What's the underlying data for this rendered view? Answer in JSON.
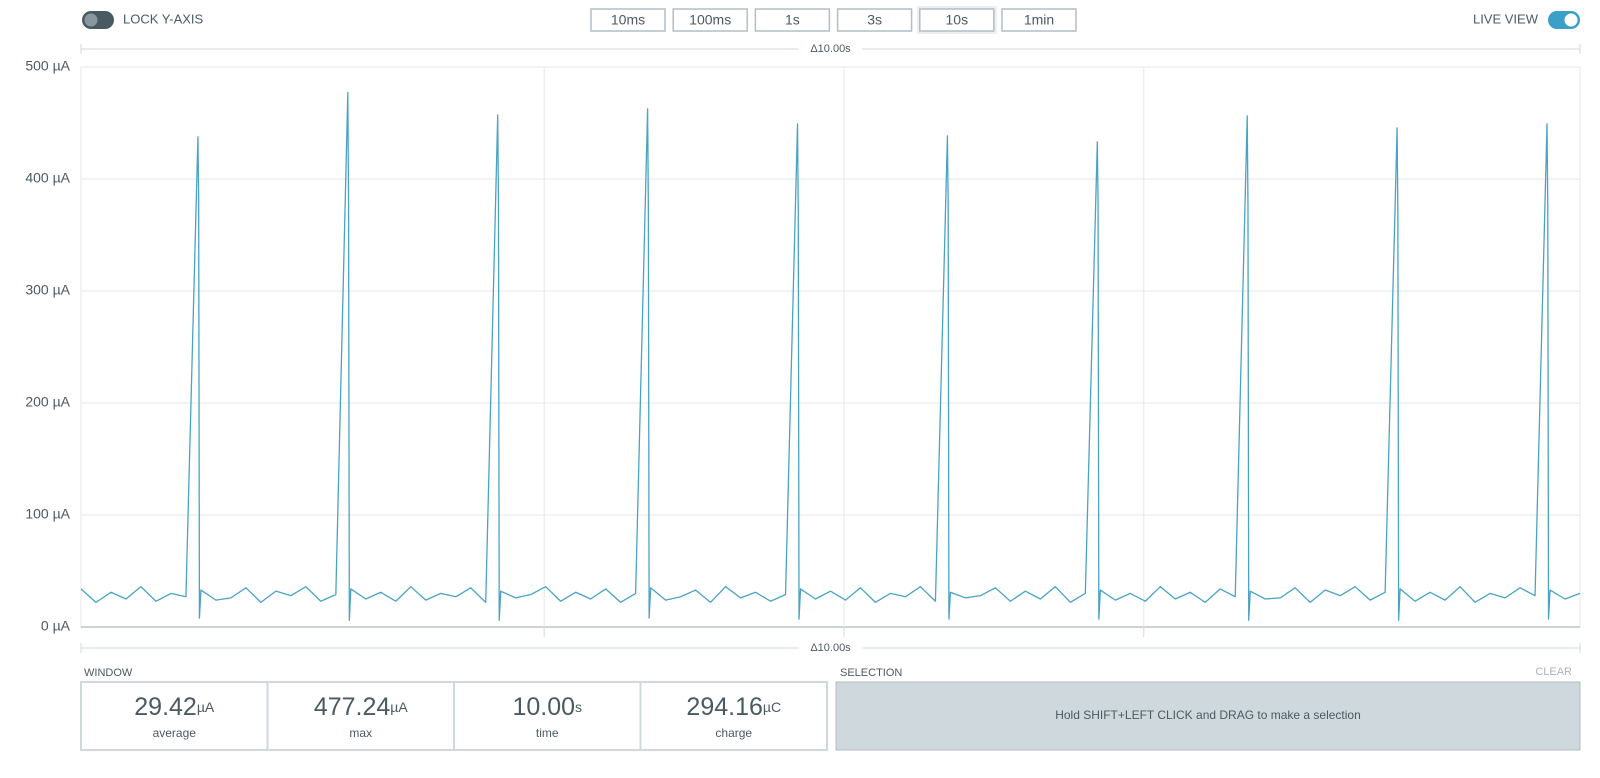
{
  "toolbar": {
    "lock_label": "LOCK Y-AXIS",
    "lock_y_axis": false,
    "buttons": [
      "10ms",
      "100ms",
      "1s",
      "3s",
      "10s",
      "1min"
    ],
    "active_index": 4,
    "live_label": "LIVE VIEW",
    "live_view": true
  },
  "chart_data": {
    "type": "line",
    "span_top": "Δ10.00s",
    "span_bottom": "Δ10.00s",
    "color": "#4aa3c4",
    "grid": true,
    "xlim": [
      0,
      10
    ],
    "xticks": [
      3.09,
      5.09,
      7.09
    ],
    "ylim": [
      0,
      500
    ],
    "yticks": [
      {
        "value": 0,
        "label": "0 µA"
      },
      {
        "value": 100,
        "label": "100 µA"
      },
      {
        "value": 200,
        "label": "200 µA"
      },
      {
        "value": 300,
        "label": "300 µA"
      },
      {
        "value": 400,
        "label": "400 µA"
      },
      {
        "value": 500,
        "label": "500 µA"
      }
    ],
    "x": [
      0,
      0.1,
      0.2,
      0.3,
      0.4,
      0.5,
      0.6,
      0.7,
      0.78,
      0.785,
      0.79,
      0.8,
      0.9,
      1,
      1.1,
      1.2,
      1.3,
      1.4,
      1.5,
      1.6,
      1.7,
      1.78,
      1.785,
      1.79,
      1.8,
      1.9,
      2,
      2.1,
      2.2,
      2.3,
      2.4,
      2.5,
      2.6,
      2.7,
      2.78,
      2.785,
      2.79,
      2.8,
      2.9,
      3,
      3.1,
      3.2,
      3.3,
      3.4,
      3.5,
      3.6,
      3.7,
      3.78,
      3.785,
      3.79,
      3.8,
      3.9,
      4,
      4.1,
      4.2,
      4.3,
      4.4,
      4.5,
      4.6,
      4.7,
      4.78,
      4.785,
      4.79,
      4.8,
      4.9,
      5,
      5.1,
      5.2,
      5.3,
      5.4,
      5.5,
      5.6,
      5.7,
      5.78,
      5.785,
      5.79,
      5.8,
      5.9,
      6,
      6.1,
      6.2,
      6.3,
      6.4,
      6.5,
      6.6,
      6.7,
      6.78,
      6.785,
      6.79,
      6.8,
      6.9,
      7,
      7.1,
      7.2,
      7.3,
      7.4,
      7.5,
      7.6,
      7.7,
      7.78,
      7.785,
      7.79,
      7.8,
      7.9,
      8,
      8.1,
      8.2,
      8.3,
      8.4,
      8.5,
      8.6,
      8.7,
      8.78,
      8.785,
      8.79,
      8.8,
      8.9,
      9,
      9.1,
      9.2,
      9.3,
      9.4,
      9.5,
      9.6,
      9.7,
      9.78,
      9.785,
      9.79,
      9.8,
      9.9,
      10
    ],
    "values": [
      34,
      22,
      31,
      25,
      36,
      23,
      30,
      27,
      437.6,
      383,
      8,
      33,
      24,
      26,
      35,
      22,
      32,
      28,
      36,
      23,
      29,
      477.24,
      376,
      6,
      34,
      25,
      31,
      23,
      36,
      24,
      30,
      27,
      35,
      22,
      457.1,
      377,
      6,
      32,
      26,
      29,
      36,
      23,
      31,
      25,
      34,
      22,
      30,
      462.6,
      371,
      8,
      35,
      24,
      27,
      33,
      22,
      36,
      26,
      31,
      23,
      29,
      449.2,
      371,
      7,
      34,
      25,
      32,
      24,
      35,
      22,
      30,
      27,
      36,
      23,
      438.5,
      378,
      7,
      31,
      26,
      28,
      35,
      23,
      32,
      25,
      36,
      22,
      30,
      433.2,
      377,
      7,
      33,
      24,
      30,
      23,
      36,
      25,
      31,
      22,
      34,
      27,
      456.3,
      376,
      6,
      32,
      25,
      26,
      35,
      22,
      33,
      28,
      36,
      24,
      31,
      445.6,
      366,
      6,
      34,
      23,
      31,
      24,
      36,
      22,
      30,
      26,
      35,
      28,
      449.2,
      375,
      7,
      33,
      25,
      30
    ]
  },
  "window": {
    "title": "WINDOW",
    "stats": [
      {
        "value": "29.42",
        "unit": "µA",
        "label": "average"
      },
      {
        "value": "477.24",
        "unit": "µA",
        "label": "max"
      },
      {
        "value": "10.00",
        "unit": "s",
        "label": "time"
      },
      {
        "value": "294.16",
        "unit": "µC",
        "label": "charge"
      }
    ]
  },
  "selection": {
    "title": "SELECTION",
    "clear": "CLEAR",
    "hint": "Hold SHIFT+LEFT CLICK and DRAG to make a selection"
  }
}
